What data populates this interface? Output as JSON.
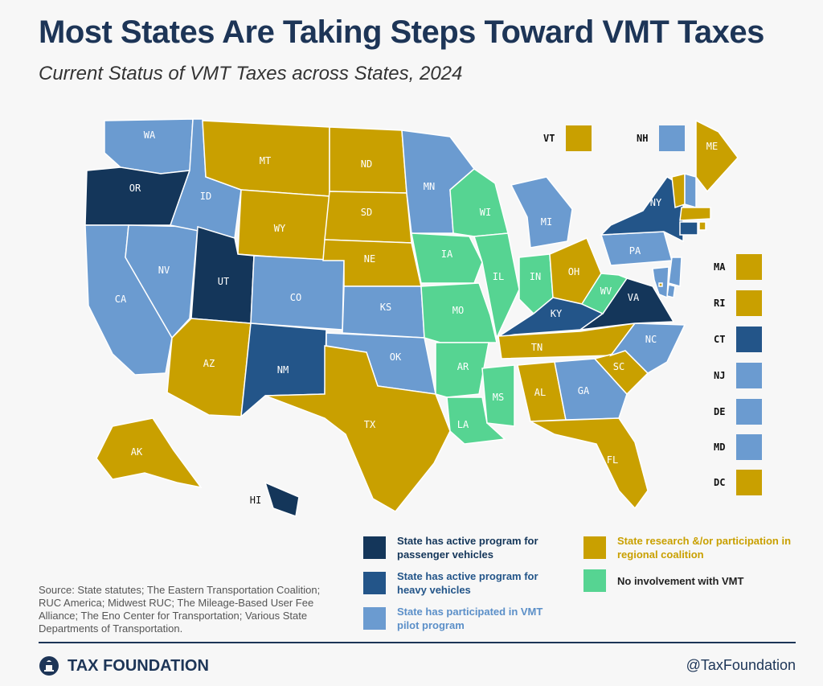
{
  "header": {
    "title": "Most States Are Taking Steps Toward VMT Taxes",
    "subtitle": "Current Status of VMT Taxes across States, 2024"
  },
  "colors": {
    "passenger": "#14365a",
    "heavy": "#235589",
    "pilot": "#6b9bd0",
    "research": "#c9a000",
    "none": "#56d492"
  },
  "states": [
    {
      "code": "WA",
      "status": "pilot"
    },
    {
      "code": "OR",
      "status": "passenger"
    },
    {
      "code": "CA",
      "status": "pilot"
    },
    {
      "code": "NV",
      "status": "pilot"
    },
    {
      "code": "ID",
      "status": "pilot"
    },
    {
      "code": "MT",
      "status": "research"
    },
    {
      "code": "WY",
      "status": "research"
    },
    {
      "code": "UT",
      "status": "passenger"
    },
    {
      "code": "AZ",
      "status": "research"
    },
    {
      "code": "CO",
      "status": "pilot"
    },
    {
      "code": "NM",
      "status": "heavy"
    },
    {
      "code": "ND",
      "status": "research"
    },
    {
      "code": "SD",
      "status": "research"
    },
    {
      "code": "NE",
      "status": "research"
    },
    {
      "code": "KS",
      "status": "pilot"
    },
    {
      "code": "OK",
      "status": "pilot"
    },
    {
      "code": "TX",
      "status": "research"
    },
    {
      "code": "MN",
      "status": "pilot"
    },
    {
      "code": "IA",
      "status": "none"
    },
    {
      "code": "MO",
      "status": "none"
    },
    {
      "code": "AR",
      "status": "none"
    },
    {
      "code": "LA",
      "status": "none"
    },
    {
      "code": "WI",
      "status": "none"
    },
    {
      "code": "IL",
      "status": "none"
    },
    {
      "code": "MS",
      "status": "none"
    },
    {
      "code": "MI",
      "status": "pilot"
    },
    {
      "code": "IN",
      "status": "none"
    },
    {
      "code": "OH",
      "status": "research"
    },
    {
      "code": "KY",
      "status": "heavy"
    },
    {
      "code": "TN",
      "status": "research"
    },
    {
      "code": "AL",
      "status": "research"
    },
    {
      "code": "GA",
      "status": "pilot"
    },
    {
      "code": "FL",
      "status": "research"
    },
    {
      "code": "SC",
      "status": "research"
    },
    {
      "code": "NC",
      "status": "pilot"
    },
    {
      "code": "VA",
      "status": "passenger"
    },
    {
      "code": "WV",
      "status": "none"
    },
    {
      "code": "PA",
      "status": "pilot"
    },
    {
      "code": "NY",
      "status": "heavy"
    },
    {
      "code": "ME",
      "status": "research"
    },
    {
      "code": "AK",
      "status": "research"
    },
    {
      "code": "HI",
      "status": "passenger"
    },
    {
      "code": "VT",
      "status": "research"
    },
    {
      "code": "NH",
      "status": "pilot"
    },
    {
      "code": "MA",
      "status": "research"
    },
    {
      "code": "RI",
      "status": "research"
    },
    {
      "code": "CT",
      "status": "heavy"
    },
    {
      "code": "NJ",
      "status": "pilot"
    },
    {
      "code": "DE",
      "status": "pilot"
    },
    {
      "code": "MD",
      "status": "pilot"
    },
    {
      "code": "DC",
      "status": "research"
    }
  ],
  "inset_top": [
    {
      "code": "VT",
      "status": "research"
    },
    {
      "code": "NH",
      "status": "pilot"
    }
  ],
  "inset_side": [
    {
      "code": "MA",
      "status": "research"
    },
    {
      "code": "RI",
      "status": "research"
    },
    {
      "code": "CT",
      "status": "heavy"
    },
    {
      "code": "NJ",
      "status": "pilot"
    },
    {
      "code": "DE",
      "status": "pilot"
    },
    {
      "code": "MD",
      "status": "pilot"
    },
    {
      "code": "DC",
      "status": "research"
    }
  ],
  "legend": {
    "passenger": "State has active program for passenger vehicles",
    "heavy": "State has active program for heavy vehicles",
    "pilot": "State has participated in VMT pilot program",
    "research": "State research &/or participation in regional coalition",
    "none": "No involvement with VMT"
  },
  "footer": {
    "source": "Source:  State statutes; The Eastern Transportation Coalition; RUC America; Midwest RUC; The Mileage-Based User Fee Alliance; The Eno Center for Transportation; Various State Departments of Transportation.",
    "brand": "TAX FOUNDATION",
    "handle": "@TaxFoundation"
  }
}
